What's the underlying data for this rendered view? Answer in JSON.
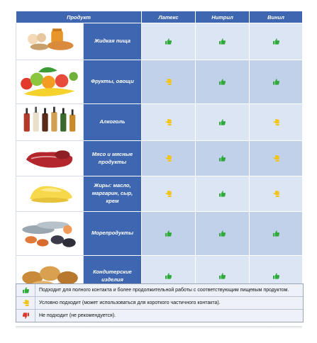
{
  "headers": {
    "product": "Продукт",
    "latex": "Латекс",
    "nitrile": "Нитрил",
    "vinyl": "Винил"
  },
  "rows": [
    {
      "name_lines": [
        "Жидкая пища"
      ],
      "image": "eggs-honey-bread",
      "latex": "good",
      "nitrile": "good",
      "vinyl": "good"
    },
    {
      "name_lines": [
        "Фрукты, овощи"
      ],
      "image": "fruits-vegetables",
      "latex": "conditional",
      "nitrile": "good",
      "vinyl": "good"
    },
    {
      "name_lines": [
        "Алкоголь"
      ],
      "image": "bottles",
      "latex": "conditional",
      "nitrile": "good",
      "vinyl": "conditional"
    },
    {
      "name_lines": [
        "Мясо и мясные",
        "продукты"
      ],
      "image": "meat",
      "latex": "conditional",
      "nitrile": "good",
      "vinyl": "conditional"
    },
    {
      "name_lines": [
        "Жиры: масло,",
        "маргарин, сыр,",
        "крем"
      ],
      "image": "butter",
      "latex": "conditional",
      "nitrile": "good",
      "vinyl": "conditional"
    },
    {
      "name_lines": [
        "Морепродукты"
      ],
      "image": "seafood",
      "latex": "good",
      "nitrile": "good",
      "vinyl": "good"
    },
    {
      "name_lines": [
        "Кондитерские",
        "изделия"
      ],
      "image": "pastry",
      "latex": "good",
      "nitrile": "good",
      "vinyl": "good"
    }
  ],
  "legend": [
    {
      "status": "good",
      "text": "Подходит для полного контакта и более продолжительной работы с соответствующим пищевым продуктом."
    },
    {
      "status": "conditional",
      "text": "Условно подходит (может использоваться для короткого частичного контакта)."
    },
    {
      "status": "bad",
      "text": "Не подходит (не рекомендуется)."
    }
  ],
  "colors": {
    "header_blue": "#3f66b0",
    "row_light": "#dce5f4",
    "row_dark": "#c2d1ea",
    "good": "#2faa3a",
    "conditional": "#f2c418",
    "bad": "#d93a2b"
  }
}
